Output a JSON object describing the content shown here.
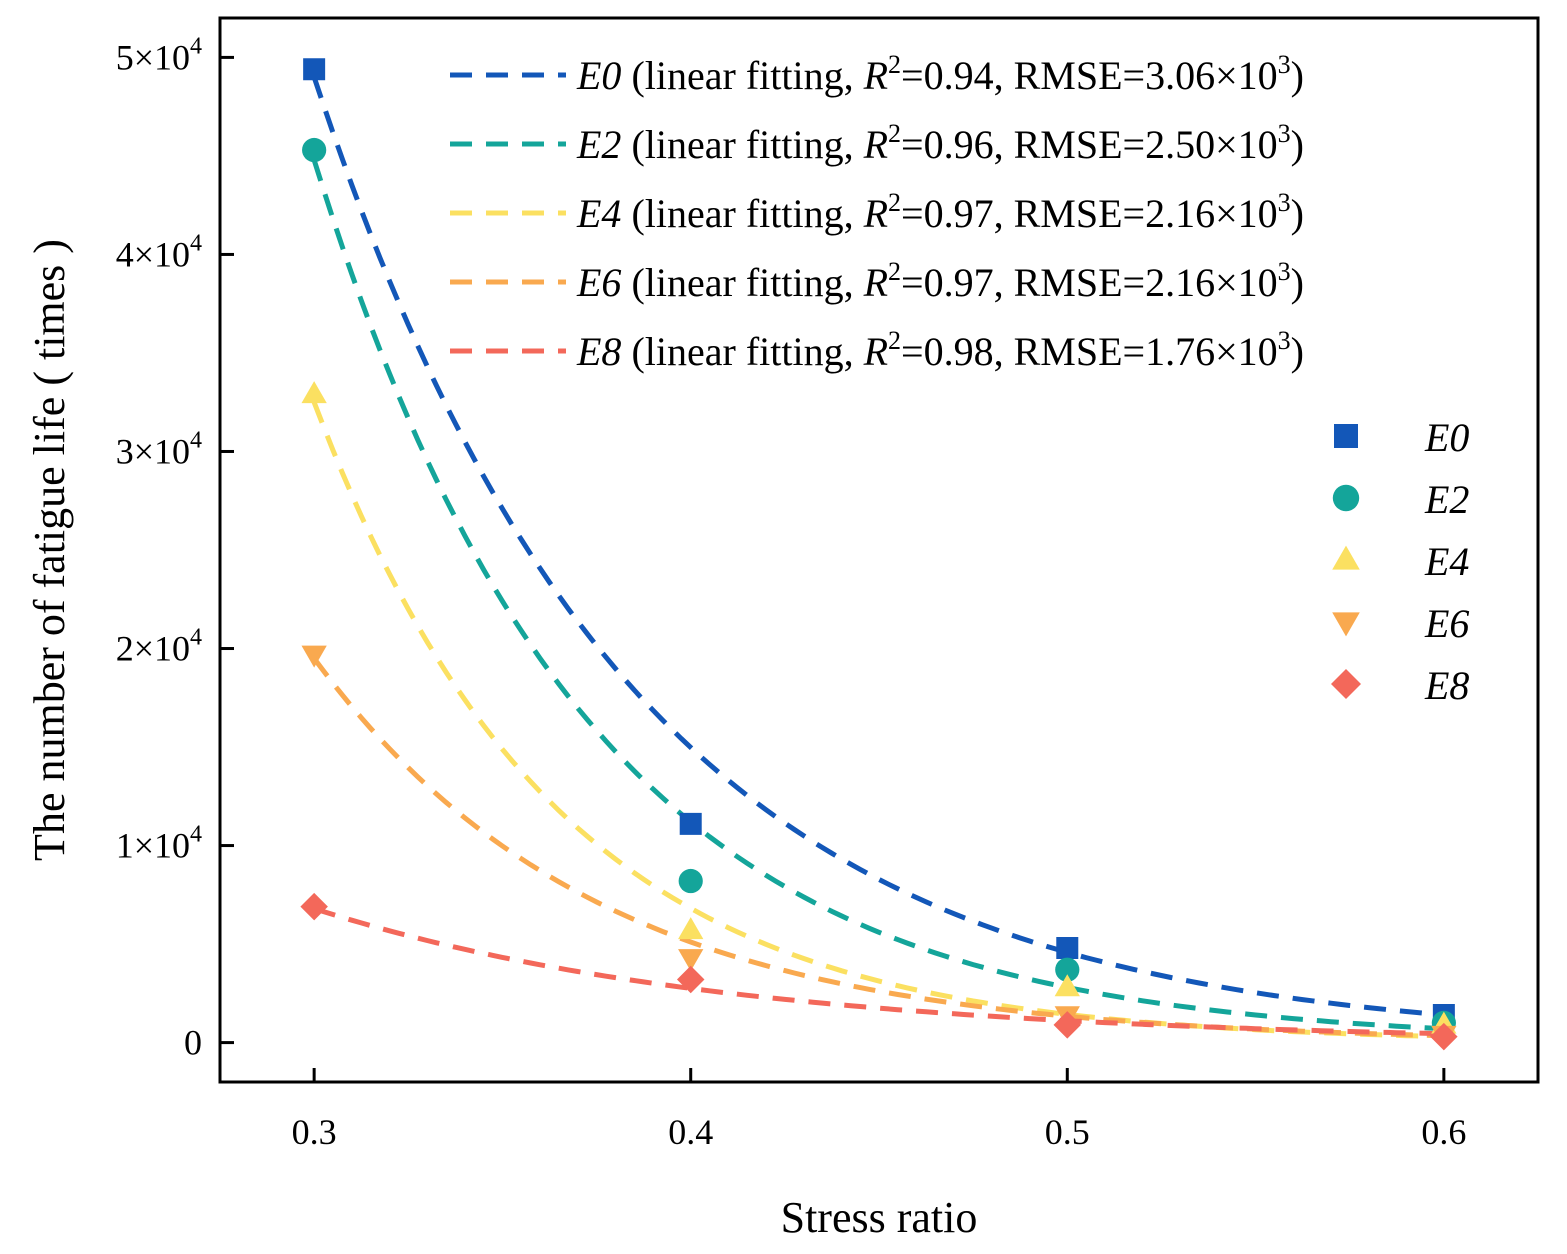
{
  "chart_data": {
    "type": "scatter",
    "xlabel": "Stress ratio",
    "ylabel": "The number of fatigue life ( times )",
    "xlim": [
      0.275,
      0.625
    ],
    "ylim": [
      -2000,
      52000
    ],
    "x_ticks": [
      0.3,
      0.4,
      0.5,
      0.6
    ],
    "x_tick_labels": [
      "0.3",
      "0.4",
      "0.5",
      "0.6"
    ],
    "y_ticks": [
      0,
      10000,
      20000,
      30000,
      40000,
      50000
    ],
    "y_tick_labels": [
      {
        "mant": "0",
        "exp": ""
      },
      {
        "mant": "1×10",
        "exp": "4"
      },
      {
        "mant": "2×10",
        "exp": "4"
      },
      {
        "mant": "3×10",
        "exp": "4"
      },
      {
        "mant": "4×10",
        "exp": "4"
      },
      {
        "mant": "5×10",
        "exp": "4"
      }
    ],
    "fit_x": [
      0.3,
      0.6
    ],
    "series": [
      {
        "name": "E0",
        "color": "#1357B8",
        "marker": "square",
        "x": [
          0.3,
          0.4,
          0.5,
          0.6
        ],
        "values": [
          49400,
          11100,
          4800,
          1400
        ],
        "fit": {
          "y0": 49000,
          "y1": 1400
        },
        "fit_label": {
          "pre": " (linear fitting, ",
          "r": "R",
          "r2": "=0.94, RMSE=3.06×10",
          "exp": "3",
          "post": ")"
        }
      },
      {
        "name": "E2",
        "color": "#14A59A",
        "marker": "circle",
        "x": [
          0.3,
          0.4,
          0.5,
          0.6
        ],
        "values": [
          45300,
          8200,
          3700,
          1000
        ],
        "fit": {
          "y0": 44800,
          "y1": 700
        },
        "fit_label": {
          "pre": " (linear fitting, ",
          "r": "R",
          "r2": "=0.96, RMSE=2.50×10",
          "exp": "3",
          "post": ")"
        }
      },
      {
        "name": "E4",
        "color": "#FBE061",
        "marker": "triangle-up",
        "x": [
          0.3,
          0.4,
          0.5,
          0.6
        ],
        "values": [
          32900,
          5700,
          2800,
          900
        ],
        "fit": {
          "y0": 32500,
          "y1": 300
        },
        "fit_label": {
          "pre": " (linear fitting, ",
          "r": "R",
          "r2": "=0.97, RMSE=2.16×10",
          "exp": "3",
          "post": ")"
        }
      },
      {
        "name": "E6",
        "color": "#F9A94F",
        "marker": "triangle-down",
        "x": [
          0.3,
          0.4,
          0.5,
          0.6
        ],
        "values": [
          19700,
          4300,
          1400,
          400
        ],
        "fit": {
          "y0": 19500,
          "y1": 350
        },
        "fit_label": {
          "pre": " (linear fitting, ",
          "r": "R",
          "r2": "=0.97, RMSE=2.16×10",
          "exp": "3",
          "post": ")"
        }
      },
      {
        "name": "E8",
        "color": "#F3685A",
        "marker": "diamond",
        "x": [
          0.3,
          0.4,
          0.5,
          0.6
        ],
        "values": [
          6900,
          3200,
          900,
          300
        ],
        "fit": {
          "y0": 6800,
          "y1": 450
        },
        "fit_label": {
          "pre": " (linear fitting, ",
          "r": "R",
          "r2": "=0.98, RMSE=1.76×10",
          "exp": "3",
          "post": ")"
        }
      }
    ],
    "legend_fit_position": "top-right",
    "legend_marker_position": "right"
  }
}
